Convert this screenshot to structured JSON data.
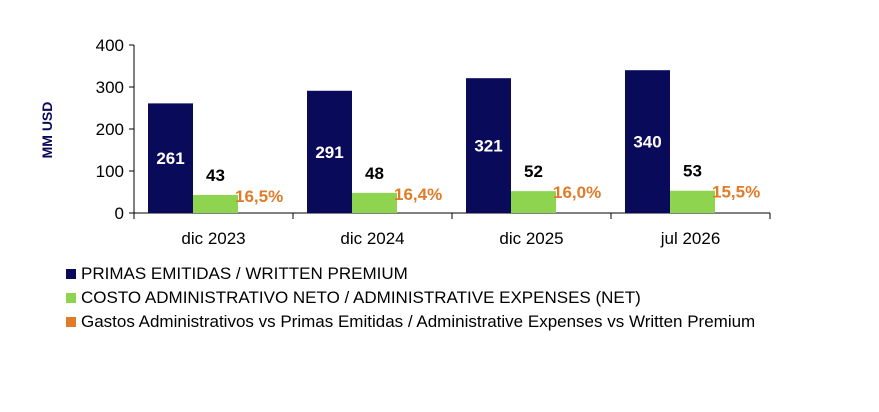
{
  "chart_data": {
    "type": "bar",
    "categories": [
      "dic 2023",
      "dic 2024",
      "dic 2025",
      "jul 2026"
    ],
    "ylabel": "MM USD",
    "ylim": [
      0,
      400
    ],
    "yticks": [
      "0",
      "100",
      "200",
      "300",
      "400"
    ],
    "grid": false,
    "legend_position": "bottom",
    "series": [
      {
        "name": "PRIMAS EMITIDAS / WRITTEN PREMIUM",
        "color": "#0a0a5a",
        "values": [
          261,
          291,
          321,
          340
        ],
        "labels": [
          "261",
          "291",
          "321",
          "340"
        ]
      },
      {
        "name": "COSTO ADMINISTRATIVO NETO / ADMINISTRATIVE EXPENSES (NET)",
        "color": "#8fd44f",
        "values": [
          43,
          48,
          52,
          53
        ],
        "labels": [
          "43",
          "48",
          "52",
          "53"
        ]
      },
      {
        "name": "Gastos Administrativos vs Primas Emitidas / Administrative Expenses vs Written Premium",
        "color": "#e07b28",
        "values": [
          16.5,
          16.4,
          16.0,
          15.5
        ],
        "labels": [
          "16,5%",
          "16,4%",
          "16,0%",
          "15,5%"
        ]
      }
    ]
  }
}
